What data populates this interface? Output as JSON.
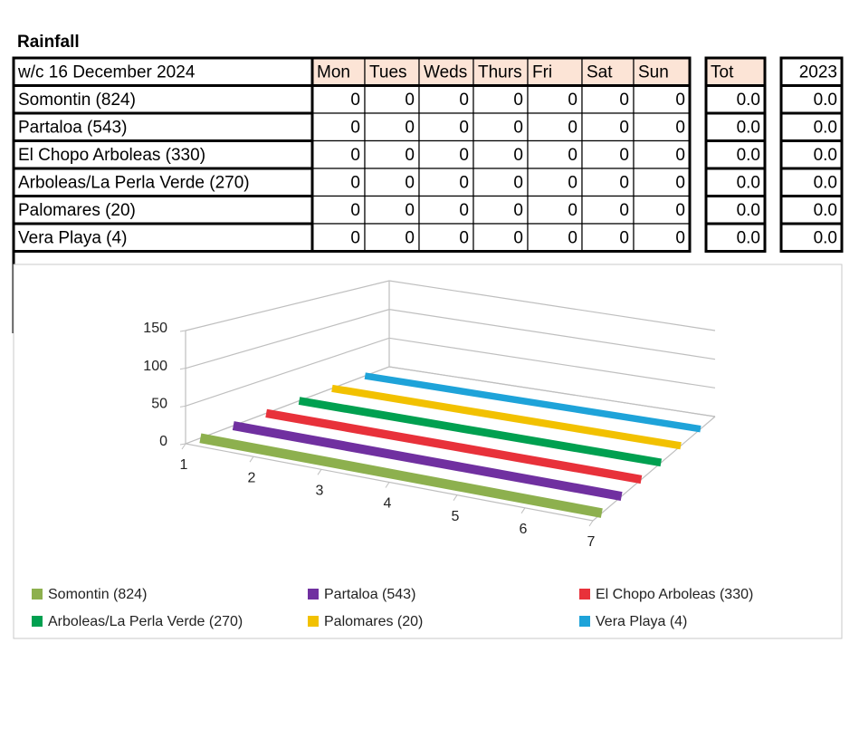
{
  "title": "Rainfall",
  "table": {
    "header": [
      "w/c 16 December 2024",
      "Mon",
      "Tues",
      "Weds",
      "Thurs",
      "Fri",
      "Sat",
      "Sun",
      "Tot",
      "2023"
    ],
    "rows": [
      [
        "Somontin (824)",
        0,
        0,
        0,
        0,
        0,
        0,
        0,
        "0.0",
        "0.0"
      ],
      [
        "Partaloa (543)",
        0,
        0,
        0,
        0,
        0,
        0,
        0,
        "0.0",
        "0.0"
      ],
      [
        "El Chopo Arboleas (330)",
        0,
        0,
        0,
        0,
        0,
        0,
        0,
        "0.0",
        "0.0"
      ],
      [
        "Arboleas/La Perla Verde (270)",
        0,
        0,
        0,
        0,
        0,
        0,
        0,
        "0.0",
        "0.0"
      ],
      [
        "Palomares (20)",
        0,
        0,
        0,
        0,
        0,
        0,
        0,
        "0.0",
        "0.0"
      ],
      [
        "Vera Playa (4)",
        0,
        0,
        0,
        0,
        0,
        0,
        0,
        "0.0",
        "0.0"
      ]
    ]
  },
  "chart_data": {
    "type": "line3d",
    "categories": [
      "1",
      "2",
      "3",
      "4",
      "5",
      "6",
      "7"
    ],
    "series": [
      {
        "name": "Somontin (824)",
        "color": "#8db04e",
        "values": [
          0,
          0,
          0,
          0,
          0,
          0,
          0
        ]
      },
      {
        "name": "Partaloa (543)",
        "color": "#7030a0",
        "values": [
          0,
          0,
          0,
          0,
          0,
          0,
          0
        ]
      },
      {
        "name": "El Chopo Arboleas (330)",
        "color": "#e8313a",
        "values": [
          0,
          0,
          0,
          0,
          0,
          0,
          0
        ]
      },
      {
        "name": "Arboleas/La Perla Verde (270)",
        "color": "#00a050",
        "values": [
          0,
          0,
          0,
          0,
          0,
          0,
          0
        ]
      },
      {
        "name": "Palomares (20)",
        "color": "#f2c100",
        "values": [
          0,
          0,
          0,
          0,
          0,
          0,
          0
        ]
      },
      {
        "name": "Vera Playa (4)",
        "color": "#1ea3d9",
        "values": [
          0,
          0,
          0,
          0,
          0,
          0,
          0
        ]
      }
    ],
    "ylim": [
      0,
      150
    ],
    "yticks": [
      0,
      50,
      100,
      150
    ],
    "grid": true,
    "legend": "bottom"
  }
}
